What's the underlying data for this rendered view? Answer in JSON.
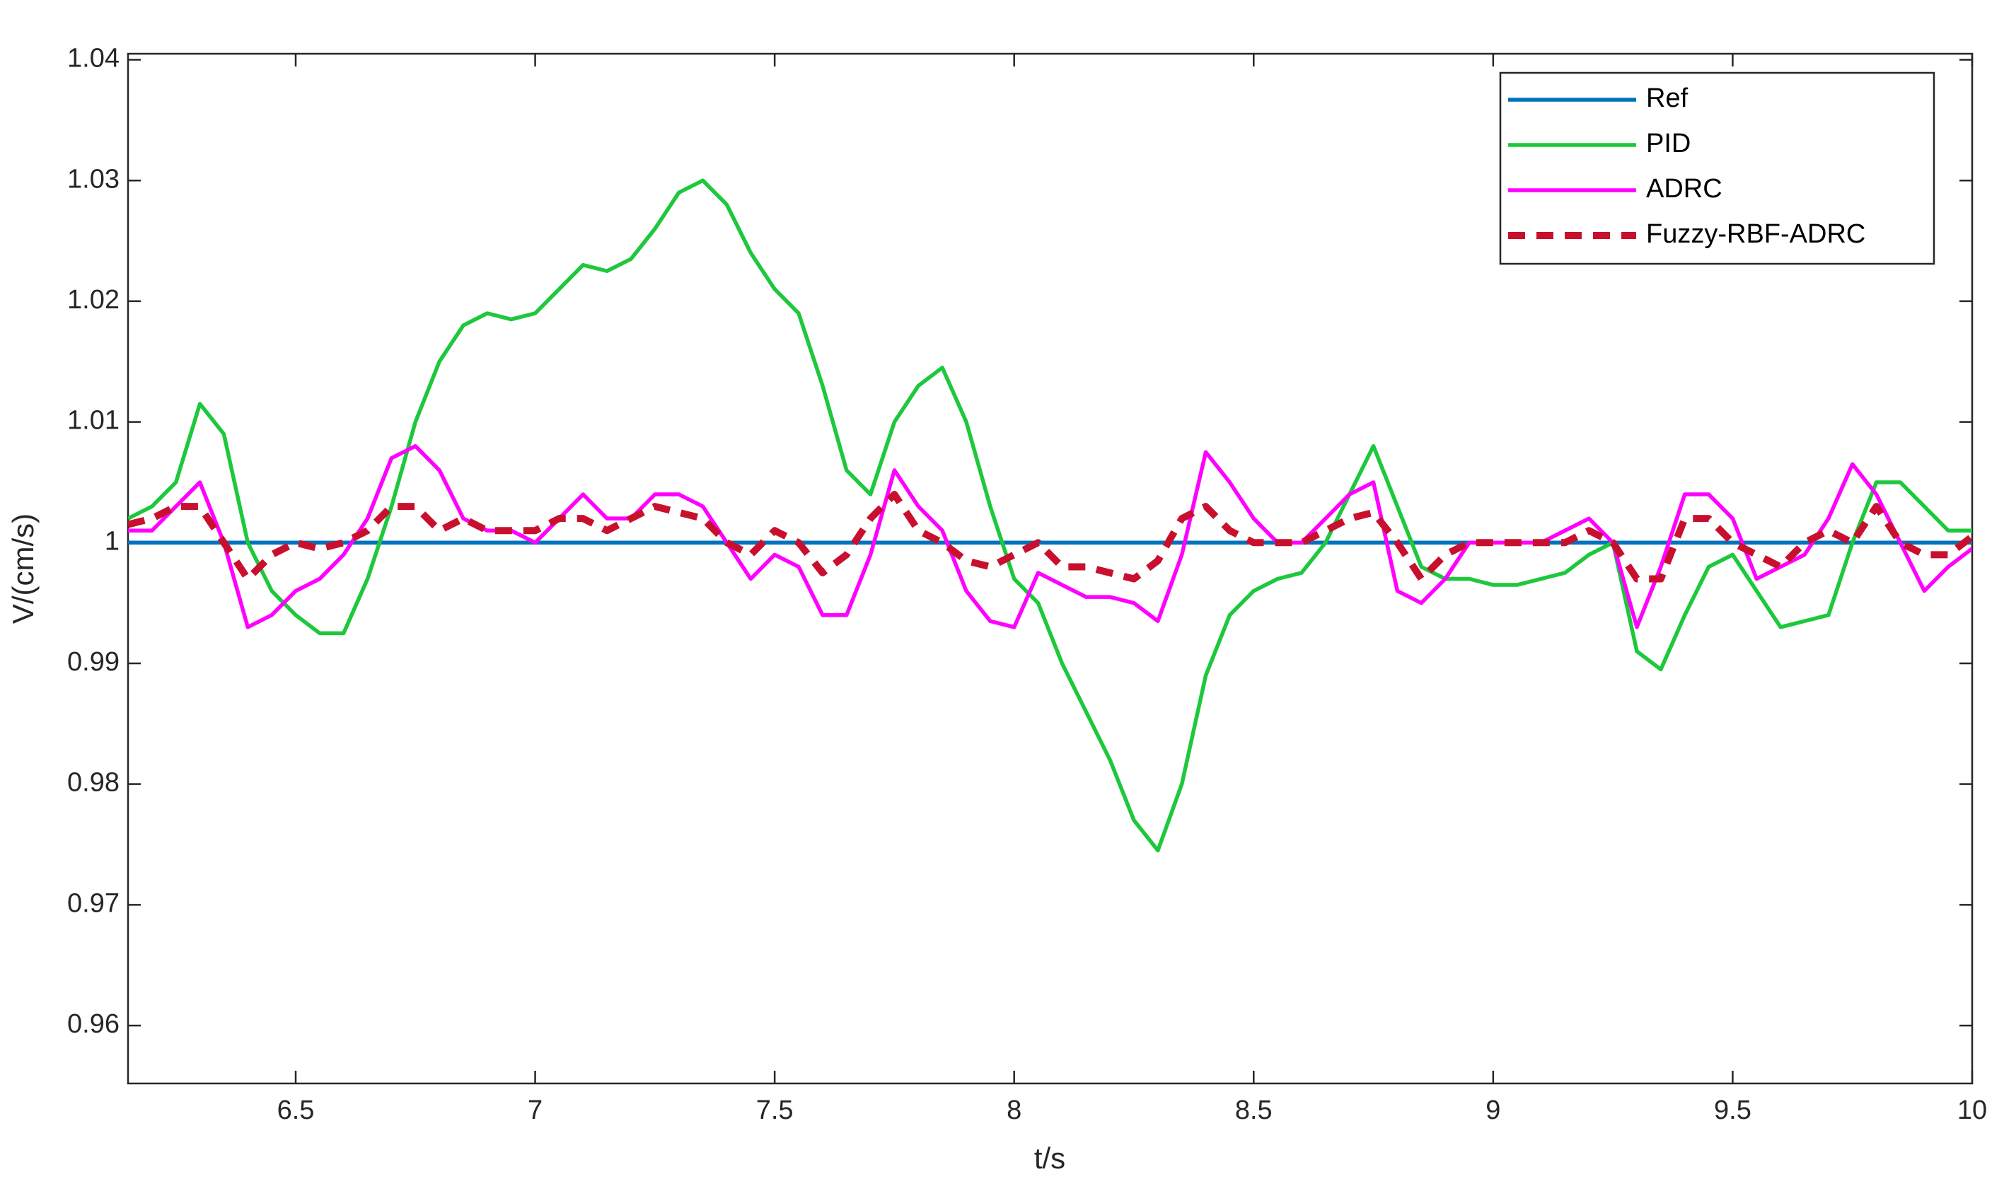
{
  "chart_data": {
    "type": "line",
    "xlabel": "t/s",
    "ylabel": "V/(cm/s)",
    "xlim": [
      6.15,
      10
    ],
    "ylim": [
      0.9552,
      1.0405
    ],
    "xticks": [
      6.5,
      7,
      7.5,
      8,
      8.5,
      9,
      9.5,
      10
    ],
    "yticks": [
      0.96,
      0.97,
      0.98,
      0.99,
      1,
      1.01,
      1.02,
      1.03,
      1.04
    ],
    "grid": false,
    "legend": "upper right",
    "x": [
      6.15,
      6.2,
      6.25,
      6.3,
      6.35,
      6.4,
      6.45,
      6.5,
      6.55,
      6.6,
      6.65,
      6.7,
      6.75,
      6.8,
      6.85,
      6.9,
      6.95,
      7.0,
      7.05,
      7.1,
      7.15,
      7.2,
      7.25,
      7.3,
      7.35,
      7.4,
      7.45,
      7.5,
      7.55,
      7.6,
      7.65,
      7.7,
      7.75,
      7.8,
      7.85,
      7.9,
      7.95,
      8.0,
      8.05,
      8.1,
      8.15,
      8.2,
      8.25,
      8.3,
      8.35,
      8.4,
      8.45,
      8.5,
      8.55,
      8.6,
      8.65,
      8.7,
      8.75,
      8.8,
      8.85,
      8.9,
      8.95,
      9.0,
      9.05,
      9.1,
      9.15,
      9.2,
      9.25,
      9.3,
      9.35,
      9.4,
      9.45,
      9.5,
      9.55,
      9.6,
      9.65,
      9.7,
      9.75,
      9.8,
      9.85,
      9.9,
      9.95,
      10.0
    ],
    "series": [
      {
        "name": "Ref",
        "color": "#0072bd",
        "dashed": false,
        "x": [
          6.15,
          10
        ],
        "values": [
          1,
          1
        ]
      },
      {
        "name": "PID",
        "color": "#1ec83c",
        "dashed": false,
        "values": [
          1.002,
          1.003,
          1.005,
          1.0115,
          1.009,
          1.0,
          0.996,
          0.994,
          0.9925,
          0.9925,
          0.997,
          1.003,
          1.01,
          1.015,
          1.018,
          1.019,
          1.0185,
          1.019,
          1.021,
          1.023,
          1.0225,
          1.0235,
          1.026,
          1.029,
          1.03,
          1.028,
          1.024,
          1.021,
          1.019,
          1.013,
          1.006,
          1.004,
          1.01,
          1.013,
          1.0145,
          1.01,
          1.003,
          0.997,
          0.995,
          0.99,
          0.986,
          0.982,
          0.977,
          0.9745,
          0.98,
          0.989,
          0.994,
          0.996,
          0.997,
          0.9975,
          1.0,
          1.004,
          1.008,
          1.003,
          0.998,
          0.997,
          0.997,
          0.9965,
          0.9965,
          0.997,
          0.9975,
          0.999,
          1.0,
          0.991,
          0.9895,
          0.994,
          0.998,
          0.999,
          0.996,
          0.993,
          0.9935,
          0.994,
          1.0,
          1.005,
          1.005,
          1.003,
          1.001,
          1.001
        ]
      },
      {
        "name": "ADRC",
        "color": "#ff00ff",
        "dashed": false,
        "values": [
          1.001,
          1.001,
          1.003,
          1.005,
          1.0,
          0.993,
          0.994,
          0.996,
          0.997,
          0.999,
          1.002,
          1.007,
          1.008,
          1.006,
          1.002,
          1.001,
          1.001,
          1.0,
          1.002,
          1.004,
          1.002,
          1.002,
          1.004,
          1.004,
          1.003,
          1.0,
          0.997,
          0.999,
          0.998,
          0.994,
          0.994,
          0.999,
          1.006,
          1.003,
          1.001,
          0.996,
          0.9935,
          0.993,
          0.9975,
          0.9965,
          0.9955,
          0.9955,
          0.995,
          0.9935,
          0.999,
          1.0075,
          1.005,
          1.002,
          1.0,
          1.0,
          1.002,
          1.004,
          1.005,
          0.996,
          0.995,
          0.997,
          1.0,
          1.0,
          1.0,
          1.0,
          1.001,
          1.002,
          1.0,
          0.993,
          0.998,
          1.004,
          1.004,
          1.002,
          0.997,
          0.998,
          0.999,
          1.002,
          1.0065,
          1.004,
          1.0,
          0.996,
          0.998,
          0.9995
        ]
      },
      {
        "name": "Fuzzy-RBF-ADRC",
        "color": "#c8102e",
        "dashed": true,
        "values": [
          1.0015,
          1.002,
          1.003,
          1.003,
          1.0,
          0.997,
          0.999,
          1.0,
          0.9995,
          1.0,
          1.001,
          1.003,
          1.003,
          1.001,
          1.002,
          1.001,
          1.001,
          1.001,
          1.002,
          1.002,
          1.001,
          1.002,
          1.003,
          1.0025,
          1.002,
          1.0,
          0.999,
          1.001,
          1.0,
          0.9975,
          0.999,
          1.002,
          1.004,
          1.001,
          1.0,
          0.9985,
          0.998,
          0.999,
          1.0,
          0.998,
          0.998,
          0.9975,
          0.997,
          0.9985,
          1.002,
          1.003,
          1.001,
          1.0,
          1.0,
          1.0,
          1.001,
          1.002,
          1.0025,
          1.0,
          0.997,
          0.999,
          1.0,
          1.0,
          1.0,
          1.0,
          1.0,
          1.001,
          1.0,
          0.997,
          0.997,
          1.002,
          1.002,
          1.0,
          0.999,
          0.998,
          1.0,
          1.001,
          1.0,
          1.003,
          1.0,
          0.999,
          0.999,
          1.0005
        ]
      }
    ]
  }
}
